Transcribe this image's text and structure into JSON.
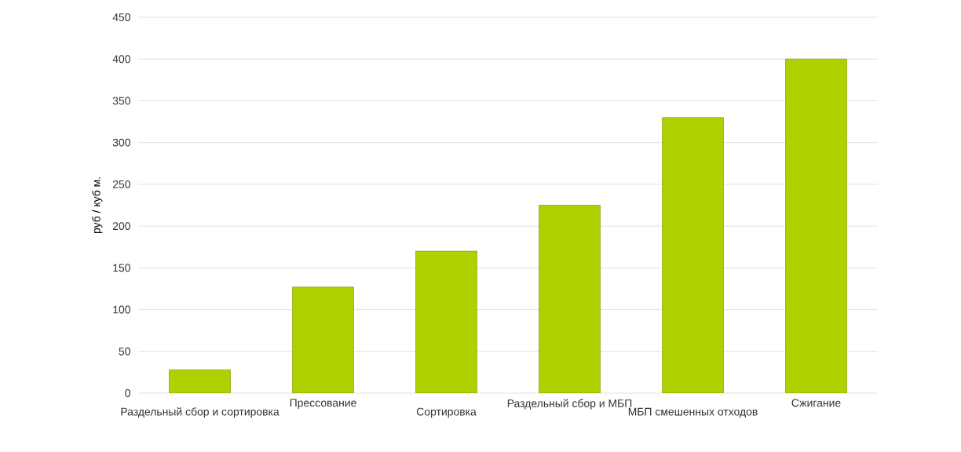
{
  "chart_data": {
    "type": "bar",
    "ylabel": "руб / куб м.",
    "categories": [
      "Раздельный сбор и сортировка",
      "Прессование",
      "Сортировка",
      "Раздельный сбор и МБП",
      "МБП смешенных отходов",
      "Сжигание"
    ],
    "values": [
      28,
      127,
      170,
      225,
      330,
      400
    ],
    "color": "#b0d000",
    "ylim": [
      0,
      450
    ],
    "yticks": [
      0,
      50,
      100,
      150,
      200,
      250,
      300,
      350,
      400,
      450
    ],
    "grid": "y"
  }
}
